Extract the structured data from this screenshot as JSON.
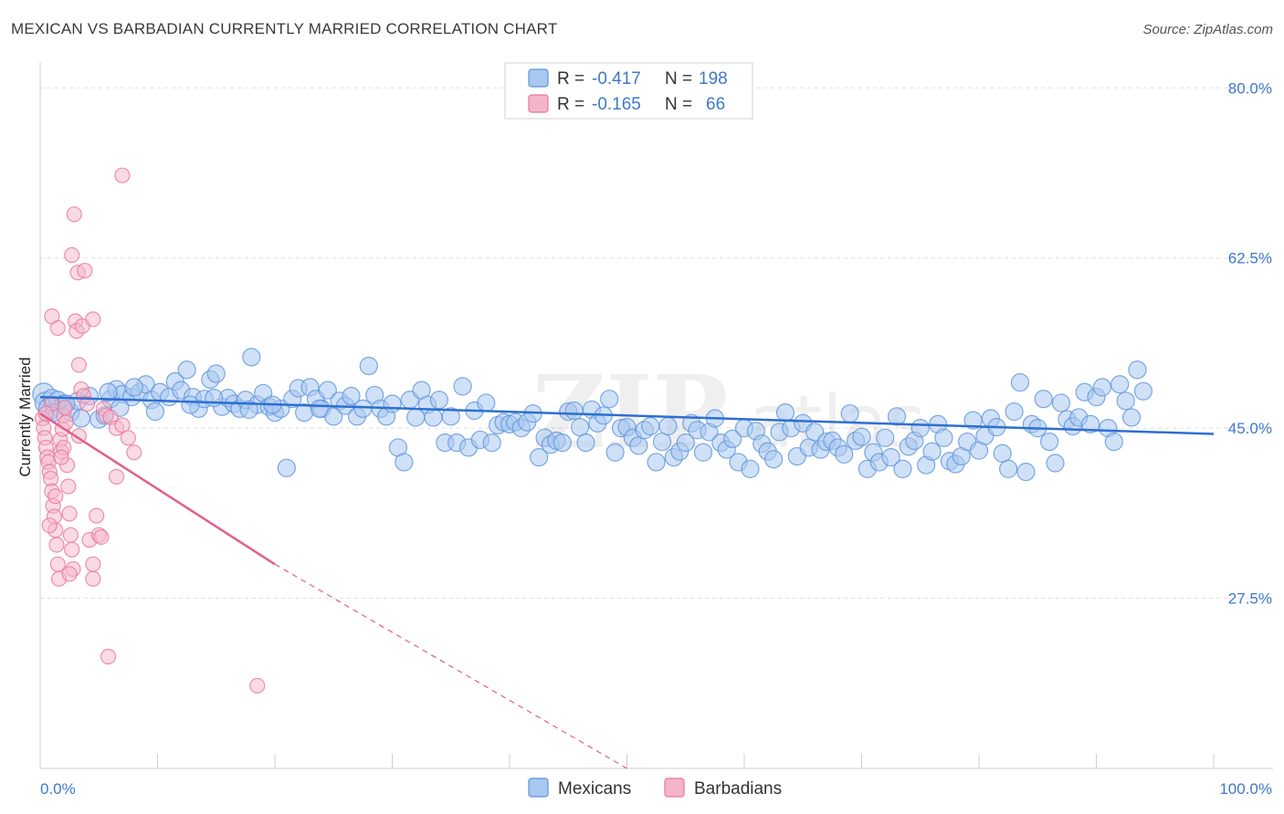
{
  "title": "MEXICAN VS BARBADIAN CURRENTLY MARRIED CORRELATION CHART",
  "source": "Source: ZipAtlas.com",
  "colors": {
    "blue": "#5b93dd",
    "blue_fill": "#a9c8f0",
    "blue_line": "#2e6fd0",
    "pink": "#e8769a",
    "pink_fill": "#f5b5c9",
    "pink_line": "#e0608a",
    "text_blue": "#3f78c9",
    "grid": "#dddddd"
  },
  "legend": {
    "r_label": "R =",
    "n_label": "N =",
    "rows": [
      {
        "series": "Mexicans",
        "r": "-0.417",
        "n": "198"
      },
      {
        "series": "Barbadians",
        "r": "-0.165",
        "n": "66"
      }
    ]
  },
  "chart_data": {
    "type": "scatter",
    "title": "MEXICAN VS BARBADIAN CURRENTLY MARRIED CORRELATION CHART",
    "xlabel": "",
    "ylabel": "Currently Married",
    "xlim": [
      0,
      100
    ],
    "ylim": [
      10,
      82
    ],
    "x_tick_labels": [
      "0.0%",
      "100.0%"
    ],
    "y_ticks": [
      27.5,
      45.0,
      62.5,
      80.0
    ],
    "y_tick_labels": [
      "27.5%",
      "45.0%",
      "62.5%",
      "80.0%"
    ],
    "grid": true,
    "legend_position": "bottom",
    "series": [
      {
        "name": "Mexicans",
        "trend": {
          "x": [
            0,
            100
          ],
          "y": [
            48.2,
            44.4
          ]
        },
        "points": [
          [
            0.3,
            48.5
          ],
          [
            0.5,
            47.6
          ],
          [
            0.8,
            47.0
          ],
          [
            1.0,
            48.1
          ],
          [
            1.5,
            47.9
          ],
          [
            2.0,
            47.5
          ],
          [
            2.6,
            46.6
          ],
          [
            3.2,
            47.8
          ],
          [
            5.0,
            45.9
          ],
          [
            5.5,
            46.3
          ],
          [
            6.0,
            48.0
          ],
          [
            6.5,
            49.0
          ],
          [
            7.0,
            48.5
          ],
          [
            7.8,
            48.2
          ],
          [
            8.5,
            48.7
          ],
          [
            9.0,
            49.5
          ],
          [
            9.5,
            47.9
          ],
          [
            10.2,
            48.7
          ],
          [
            11.0,
            48.2
          ],
          [
            11.5,
            49.8
          ],
          [
            12.0,
            48.9
          ],
          [
            12.5,
            51.0
          ],
          [
            13.0,
            48.2
          ],
          [
            13.5,
            47.0
          ],
          [
            14.0,
            48.0
          ],
          [
            14.5,
            50.0
          ],
          [
            15.0,
            50.6
          ],
          [
            15.5,
            47.2
          ],
          [
            16.0,
            48.1
          ],
          [
            16.5,
            47.5
          ],
          [
            17.0,
            47.0
          ],
          [
            17.5,
            47.9
          ],
          [
            18.0,
            52.3
          ],
          [
            18.5,
            47.4
          ],
          [
            19.0,
            48.6
          ],
          [
            19.5,
            47.2
          ],
          [
            20.0,
            46.6
          ],
          [
            20.5,
            47.0
          ],
          [
            21.0,
            40.9
          ],
          [
            21.5,
            48.0
          ],
          [
            22.0,
            49.1
          ],
          [
            22.5,
            46.6
          ],
          [
            23.0,
            49.2
          ],
          [
            23.5,
            48.0
          ],
          [
            24.0,
            47.0
          ],
          [
            24.5,
            48.9
          ],
          [
            25.0,
            46.2
          ],
          [
            25.5,
            47.8
          ],
          [
            26.0,
            47.3
          ],
          [
            26.5,
            48.3
          ],
          [
            27.0,
            46.2
          ],
          [
            27.5,
            47.0
          ],
          [
            28.0,
            51.4
          ],
          [
            28.5,
            48.4
          ],
          [
            29.0,
            47.0
          ],
          [
            29.5,
            46.2
          ],
          [
            30.0,
            47.5
          ],
          [
            30.5,
            43.0
          ],
          [
            31.0,
            41.5
          ],
          [
            31.5,
            47.9
          ],
          [
            32.0,
            46.1
          ],
          [
            32.5,
            48.9
          ],
          [
            33.0,
            47.4
          ],
          [
            33.5,
            46.1
          ],
          [
            34.0,
            47.9
          ],
          [
            34.5,
            43.5
          ],
          [
            35.0,
            46.2
          ],
          [
            35.5,
            43.5
          ],
          [
            36.0,
            49.3
          ],
          [
            36.5,
            43.0
          ],
          [
            37.0,
            46.8
          ],
          [
            37.5,
            43.8
          ],
          [
            38.0,
            47.6
          ],
          [
            38.5,
            43.5
          ],
          [
            39.0,
            45.3
          ],
          [
            39.5,
            45.6
          ],
          [
            40.0,
            45.4
          ],
          [
            40.5,
            45.6
          ],
          [
            41.0,
            45.0
          ],
          [
            41.5,
            45.6
          ],
          [
            42.0,
            46.5
          ],
          [
            42.5,
            42.0
          ],
          [
            43.0,
            44.0
          ],
          [
            43.5,
            43.3
          ],
          [
            44.0,
            43.7
          ],
          [
            44.5,
            43.5
          ],
          [
            45.0,
            46.7
          ],
          [
            45.5,
            46.8
          ],
          [
            46.0,
            45.1
          ],
          [
            46.5,
            43.5
          ],
          [
            47.0,
            46.9
          ],
          [
            47.5,
            45.5
          ],
          [
            48.0,
            46.3
          ],
          [
            48.5,
            48.0
          ],
          [
            49.0,
            42.5
          ],
          [
            49.5,
            45.0
          ],
          [
            50.0,
            45.1
          ],
          [
            50.5,
            44.0
          ],
          [
            51.0,
            43.2
          ],
          [
            51.5,
            44.8
          ],
          [
            52.0,
            45.2
          ],
          [
            52.5,
            41.5
          ],
          [
            53.0,
            43.6
          ],
          [
            53.5,
            45.2
          ],
          [
            54.0,
            42.0
          ],
          [
            54.5,
            42.6
          ],
          [
            55.0,
            43.5
          ],
          [
            55.5,
            45.5
          ],
          [
            56.0,
            44.8
          ],
          [
            56.5,
            42.5
          ],
          [
            57.0,
            44.6
          ],
          [
            57.5,
            46.0
          ],
          [
            58.0,
            43.5
          ],
          [
            58.5,
            42.8
          ],
          [
            59.0,
            43.9
          ],
          [
            59.5,
            41.5
          ],
          [
            60.0,
            45.0
          ],
          [
            60.5,
            40.8
          ],
          [
            61.0,
            44.7
          ],
          [
            61.5,
            43.4
          ],
          [
            62.0,
            42.6
          ],
          [
            62.5,
            41.8
          ],
          [
            63.0,
            44.6
          ],
          [
            63.5,
            46.6
          ],
          [
            64.0,
            45.0
          ],
          [
            64.5,
            42.1
          ],
          [
            65.0,
            45.5
          ],
          [
            65.5,
            43.0
          ],
          [
            66.0,
            44.6
          ],
          [
            66.5,
            42.8
          ],
          [
            67.0,
            43.6
          ],
          [
            67.5,
            43.7
          ],
          [
            68.0,
            43.0
          ],
          [
            68.5,
            42.3
          ],
          [
            69.0,
            46.5
          ],
          [
            69.5,
            43.7
          ],
          [
            70.0,
            44.1
          ],
          [
            70.5,
            40.8
          ],
          [
            71.0,
            42.5
          ],
          [
            71.5,
            41.5
          ],
          [
            72.0,
            44.0
          ],
          [
            72.5,
            42.0
          ],
          [
            73.0,
            46.2
          ],
          [
            73.5,
            40.8
          ],
          [
            74.0,
            43.1
          ],
          [
            74.5,
            43.7
          ],
          [
            75.0,
            45.0
          ],
          [
            75.5,
            41.2
          ],
          [
            76.0,
            42.6
          ],
          [
            76.5,
            45.4
          ],
          [
            77.0,
            44.0
          ],
          [
            77.5,
            41.6
          ],
          [
            78.0,
            41.3
          ],
          [
            78.5,
            42.1
          ],
          [
            79.0,
            43.6
          ],
          [
            79.5,
            45.8
          ],
          [
            80.0,
            42.7
          ],
          [
            80.5,
            44.2
          ],
          [
            81.0,
            46.0
          ],
          [
            81.5,
            45.1
          ],
          [
            82.0,
            42.4
          ],
          [
            82.5,
            40.8
          ],
          [
            83.0,
            46.7
          ],
          [
            83.5,
            49.7
          ],
          [
            84.0,
            40.5
          ],
          [
            84.5,
            45.4
          ],
          [
            85.0,
            45.0
          ],
          [
            85.5,
            48.0
          ],
          [
            86.0,
            43.6
          ],
          [
            86.5,
            41.4
          ],
          [
            87.0,
            47.6
          ],
          [
            87.5,
            45.9
          ],
          [
            88.0,
            45.2
          ],
          [
            88.5,
            46.1
          ],
          [
            89.0,
            48.7
          ],
          [
            89.5,
            45.4
          ],
          [
            90.0,
            48.2
          ],
          [
            90.5,
            49.2
          ],
          [
            91.0,
            45.0
          ],
          [
            91.5,
            43.6
          ],
          [
            92.0,
            49.5
          ],
          [
            92.5,
            47.8
          ],
          [
            93.0,
            46.1
          ],
          [
            93.5,
            51.0
          ],
          [
            94.0,
            48.8
          ],
          [
            1.2,
            46.6
          ],
          [
            2.2,
            47.5
          ],
          [
            3.5,
            46.0
          ],
          [
            4.2,
            48.3
          ],
          [
            5.8,
            48.7
          ],
          [
            6.8,
            47.1
          ],
          [
            8.0,
            49.2
          ],
          [
            9.8,
            46.7
          ],
          [
            12.8,
            47.4
          ],
          [
            14.8,
            48.1
          ],
          [
            17.8,
            46.9
          ],
          [
            19.8,
            47.4
          ],
          [
            23.8,
            47.0
          ]
        ]
      },
      {
        "name": "Barbadians",
        "trend": {
          "x": [
            0,
            20
          ],
          "y": [
            46.5,
            31.0
          ]
        },
        "trend_dashed": {
          "x": [
            20,
            50
          ],
          "y": [
            31.0,
            10.0
          ]
        },
        "points": [
          [
            0.2,
            46.0
          ],
          [
            0.3,
            45.0
          ],
          [
            0.4,
            44.0
          ],
          [
            0.5,
            43.0
          ],
          [
            0.6,
            42.0
          ],
          [
            0.7,
            41.5
          ],
          [
            0.8,
            40.5
          ],
          [
            0.9,
            39.8
          ],
          [
            1.0,
            38.5
          ],
          [
            1.1,
            37.0
          ],
          [
            1.2,
            35.9
          ],
          [
            1.3,
            34.5
          ],
          [
            1.4,
            33.0
          ],
          [
            1.5,
            31.0
          ],
          [
            1.6,
            29.5
          ],
          [
            1.7,
            43.8
          ],
          [
            1.8,
            42.6
          ],
          [
            1.9,
            44.9
          ],
          [
            2.0,
            46.3
          ],
          [
            2.1,
            47.1
          ],
          [
            2.2,
            45.6
          ],
          [
            2.3,
            41.2
          ],
          [
            2.4,
            39.0
          ],
          [
            2.5,
            36.2
          ],
          [
            2.6,
            34.0
          ],
          [
            2.7,
            32.5
          ],
          [
            2.8,
            30.5
          ],
          [
            2.9,
            67.0
          ],
          [
            3.0,
            56.0
          ],
          [
            3.1,
            55.0
          ],
          [
            3.2,
            61.0
          ],
          [
            3.3,
            51.5
          ],
          [
            3.5,
            49.0
          ],
          [
            3.7,
            48.3
          ],
          [
            4.0,
            47.5
          ],
          [
            4.2,
            33.5
          ],
          [
            4.5,
            31.0
          ],
          [
            4.8,
            36.0
          ],
          [
            5.0,
            34.0
          ],
          [
            5.2,
            33.8
          ],
          [
            5.4,
            47.0
          ],
          [
            5.6,
            46.3
          ],
          [
            6.0,
            46.1
          ],
          [
            6.5,
            45.0
          ],
          [
            7.0,
            45.3
          ],
          [
            7.5,
            44.0
          ],
          [
            8.0,
            42.5
          ],
          [
            3.8,
            61.2
          ],
          [
            3.6,
            55.5
          ],
          [
            2.7,
            62.8
          ],
          [
            1.0,
            56.5
          ],
          [
            1.5,
            55.3
          ],
          [
            4.5,
            56.2
          ],
          [
            7.0,
            71.0
          ],
          [
            4.5,
            29.5
          ],
          [
            5.8,
            21.5
          ],
          [
            18.5,
            18.5
          ],
          [
            2.5,
            30.0
          ],
          [
            1.3,
            38.0
          ],
          [
            0.8,
            35.0
          ],
          [
            6.5,
            40.0
          ],
          [
            2.0,
            43.0
          ],
          [
            1.0,
            47.5
          ],
          [
            1.8,
            42.0
          ],
          [
            0.5,
            46.5
          ],
          [
            3.3,
            44.2
          ]
        ]
      }
    ]
  }
}
